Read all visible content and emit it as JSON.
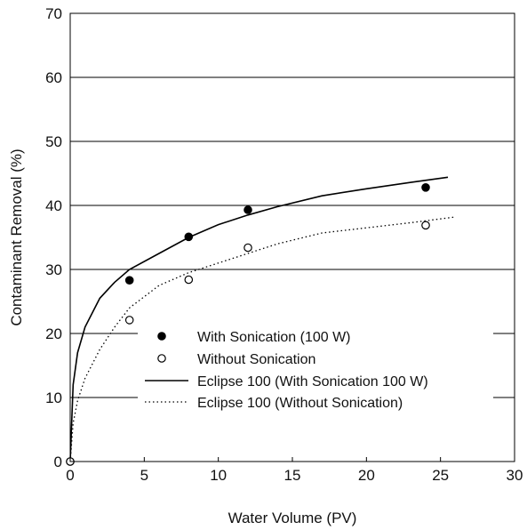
{
  "chart_data": {
    "type": "scatter",
    "xlabel": "Water Volume (PV)",
    "ylabel": "Contaminant Removal (%)",
    "xlim": [
      0,
      30
    ],
    "ylim": [
      0,
      70
    ],
    "xticks": [
      0,
      5,
      10,
      15,
      20,
      25,
      30
    ],
    "yticks": [
      0,
      10,
      20,
      30,
      40,
      50,
      60,
      70
    ],
    "x_tick_labels": [
      "0",
      "5",
      "10",
      "15",
      "20",
      "25",
      "30"
    ],
    "y_tick_labels": [
      "0",
      "10",
      "20",
      "30",
      "40",
      "50",
      "60",
      "70"
    ],
    "grid": "horizontal",
    "legend_position": "lower-right",
    "series": [
      {
        "name": "With Sonication (100 W)",
        "kind": "marker",
        "marker": "filled-circle",
        "x": [
          0,
          4,
          8,
          12,
          24
        ],
        "y": [
          0,
          28.3,
          35.1,
          39.3,
          42.8
        ]
      },
      {
        "name": "Without Sonication",
        "kind": "marker",
        "marker": "open-circle",
        "x": [
          0,
          4,
          8,
          12,
          24
        ],
        "y": [
          0,
          22.1,
          28.4,
          33.4,
          36.9
        ]
      },
      {
        "name": "Eclipse 100 (With Sonication 100 W)",
        "kind": "line",
        "style": "solid",
        "x": [
          0,
          0.2,
          0.5,
          1,
          2,
          3,
          4,
          6,
          8,
          10,
          12,
          14,
          17,
          20,
          23,
          25.5
        ],
        "y": [
          0,
          12,
          17,
          21,
          25.5,
          28,
          30,
          32.5,
          35,
          37,
          38.5,
          39.8,
          41.5,
          42.6,
          43.6,
          44.4
        ]
      },
      {
        "name": "Eclipse 100 (Without Sonication)",
        "kind": "line",
        "style": "dotted",
        "x": [
          0,
          0.2,
          0.5,
          1,
          2,
          3,
          4,
          6,
          8,
          10,
          12,
          14,
          17,
          20,
          23,
          26
        ],
        "y": [
          0,
          6,
          9.5,
          13,
          17.5,
          21,
          24,
          27.5,
          29.5,
          31,
          32.5,
          34,
          35.7,
          36.5,
          37.3,
          38.2
        ]
      }
    ]
  }
}
